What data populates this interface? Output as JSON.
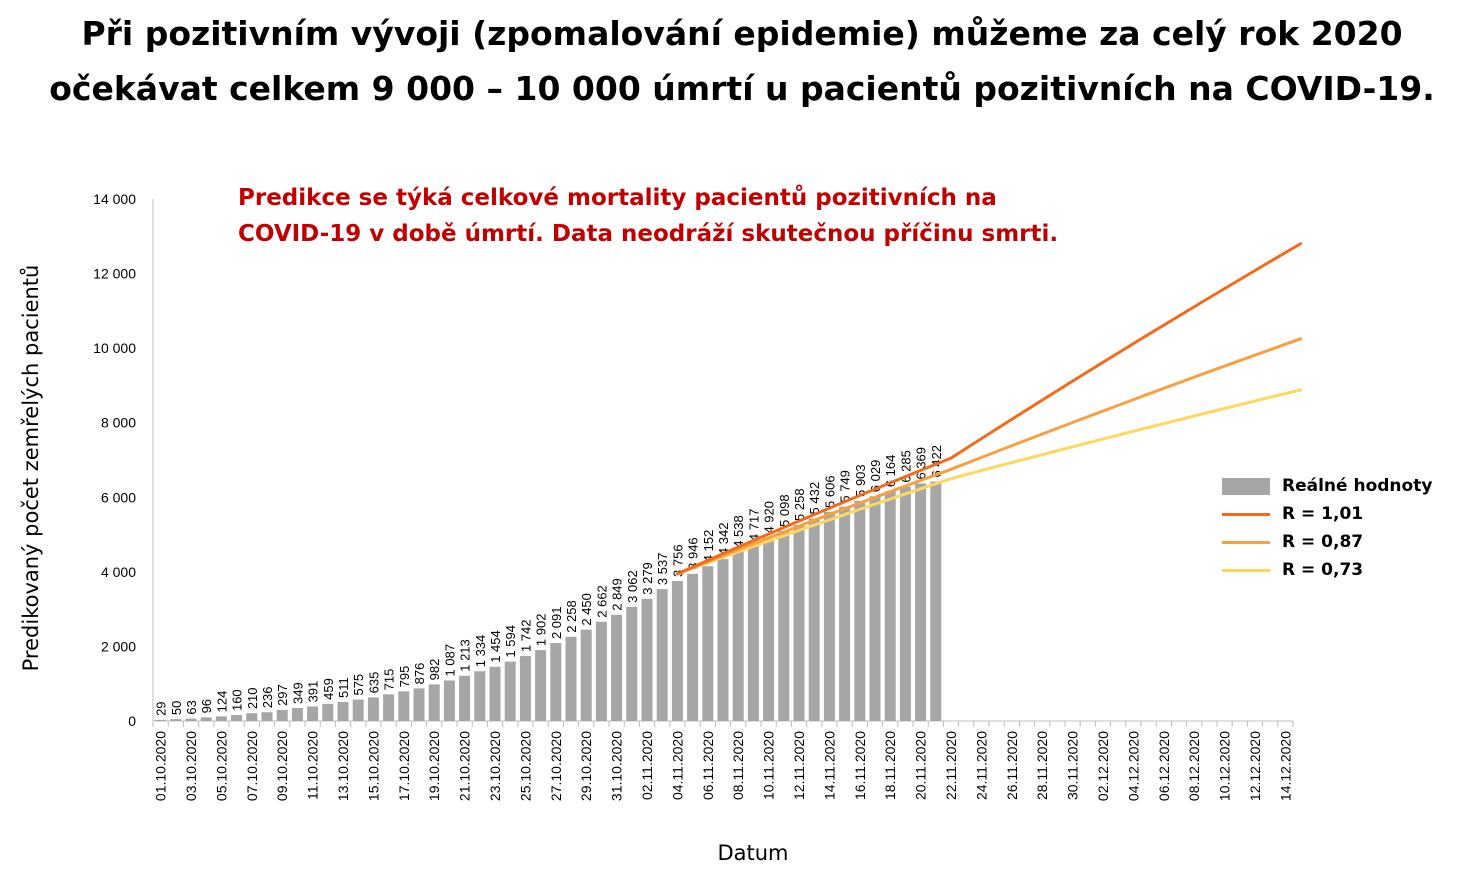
{
  "title_line1": "Při pozitivním vývoji (zpomalování epidemie) můžeme za celý rok 2020",
  "title_line2": "očekávat celkem 9 000 – 10 000 úmrtí u pacientů pozitivních na COVID-19.",
  "note_line1": "Predikce se týká celkové mortality pacientů pozitivních na",
  "note_line2": "COVID-19 v době úmrtí. Data neodráží skutečnou příčinu smrti.",
  "colors": {
    "bars": "#a6a6a6",
    "r101": "#f26b1d",
    "r087": "#f8a040",
    "r073": "#fdd760",
    "note": "#c00000"
  },
  "chart_data": {
    "type": "bar",
    "xlabel": "Datum",
    "ylabel": "Predikovaný počet zemřelých pacientů",
    "ylim": [
      0,
      14000
    ],
    "yticks": [
      0,
      2000,
      4000,
      6000,
      8000,
      10000,
      12000,
      14000
    ],
    "ytick_labels": [
      "0",
      "2 000",
      "4 000",
      "6 000",
      "8 000",
      "10 000",
      "12 000",
      "14 000"
    ],
    "x_start": "2020-10-01",
    "x_end": "2020-12-15",
    "xtick_labels": [
      "01.10.2020",
      "03.10.2020",
      "05.10.2020",
      "07.10.2020",
      "09.10.2020",
      "11.10.2020",
      "13.10.2020",
      "15.10.2020",
      "17.10.2020",
      "19.10.2020",
      "21.10.2020",
      "23.10.2020",
      "25.10.2020",
      "27.10.2020",
      "29.10.2020",
      "31.10.2020",
      "02.11.2020",
      "04.11.2020",
      "06.11.2020",
      "08.11.2020",
      "10.11.2020",
      "12.11.2020",
      "14.11.2020",
      "16.11.2020",
      "18.11.2020",
      "20.11.2020",
      "22.11.2020",
      "24.11.2020",
      "26.11.2020",
      "28.11.2020",
      "30.11.2020",
      "02.12.2020",
      "04.12.2020",
      "06.12.2020",
      "08.12.2020",
      "10.12.2020",
      "12.12.2020",
      "14.12.2020"
    ],
    "legend_position": "right",
    "bars": {
      "name": "Reálné hodnoty",
      "values": [
        29,
        50,
        63,
        96,
        124,
        160,
        210,
        236,
        297,
        349,
        391,
        459,
        511,
        575,
        635,
        715,
        795,
        876,
        982,
        1087,
        1213,
        1334,
        1454,
        1594,
        1742,
        1902,
        2091,
        2258,
        2450,
        2662,
        2849,
        3062,
        3279,
        3537,
        3756,
        3946,
        4152,
        4342,
        4538,
        4717,
        4920,
        5098,
        5258,
        5432,
        5606,
        5749,
        5903,
        6029,
        6164,
        6285,
        6369,
        6422
      ],
      "value_labels": [
        "29",
        "50",
        "63",
        "96",
        "124",
        "160",
        "210",
        "236",
        "297",
        "349",
        "391",
        "459",
        "511",
        "575",
        "635",
        "715",
        "795",
        "876",
        "982",
        "1 087",
        "1 213",
        "1 334",
        "1 454",
        "1 594",
        "1 742",
        "1 902",
        "2 091",
        "2 258",
        "2 450",
        "2 662",
        "2 849",
        "3 062",
        "3 279",
        "3 537",
        "3 756",
        "3 946",
        "4 152",
        "4 342",
        "4 538",
        "4 717",
        "4 920",
        "5 098",
        "5 258",
        "5 432",
        "5 606",
        "5 749",
        "5 903",
        "6 029",
        "6 164",
        "6 285",
        "6 369",
        "6 422"
      ]
    },
    "series": [
      {
        "name": "R = 1,01",
        "x": [
          "2020-11-04",
          "2020-11-22",
          "2020-12-15"
        ],
        "values": [
          3946,
          7050,
          12800
        ]
      },
      {
        "name": "R = 0,87",
        "x": [
          "2020-11-04",
          "2020-11-22",
          "2020-12-15"
        ],
        "values": [
          3946,
          6750,
          10250
        ]
      },
      {
        "name": "R = 0,73",
        "x": [
          "2020-11-04",
          "2020-11-22",
          "2020-12-15"
        ],
        "values": [
          3946,
          6500,
          8880
        ]
      }
    ]
  }
}
